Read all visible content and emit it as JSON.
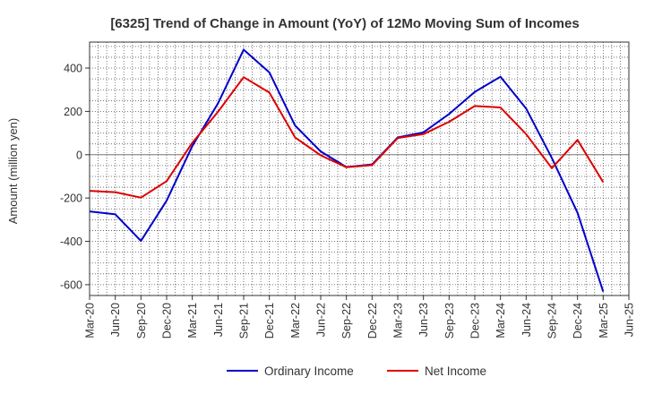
{
  "chart_data": {
    "type": "line",
    "title": "[6325]  Trend of Change in Amount (YoY) of 12Mo Moving Sum of Incomes",
    "xlabel": "",
    "ylabel": "Amount (million yen)",
    "ylim": [
      -650,
      520
    ],
    "yticks": [
      -600,
      -400,
      -200,
      0,
      200,
      400
    ],
    "categories": [
      "Mar-20",
      "Jun-20",
      "Sep-20",
      "Dec-20",
      "Mar-21",
      "Jun-21",
      "Sep-21",
      "Dec-21",
      "Mar-22",
      "Jun-22",
      "Sep-22",
      "Dec-22",
      "Mar-23",
      "Jun-23",
      "Sep-23",
      "Dec-23",
      "Mar-24",
      "Jun-24",
      "Sep-24",
      "Dec-24",
      "Mar-25",
      "Jun-25"
    ],
    "grid": true,
    "legend_position": "bottom",
    "series": [
      {
        "name": "Ordinary Income",
        "color": "#0000cc",
        "values": [
          -262,
          -275,
          -398,
          -212,
          40,
          237,
          485,
          380,
          135,
          15,
          -57,
          -45,
          80,
          103,
          188,
          290,
          360,
          213,
          -15,
          -268,
          -632,
          null
        ]
      },
      {
        "name": "Net Income",
        "color": "#dd0000",
        "values": [
          -167,
          -173,
          -198,
          -122,
          55,
          198,
          358,
          287,
          80,
          -3,
          -58,
          -48,
          77,
          95,
          152,
          225,
          218,
          95,
          -62,
          68,
          -127,
          null
        ]
      }
    ]
  }
}
